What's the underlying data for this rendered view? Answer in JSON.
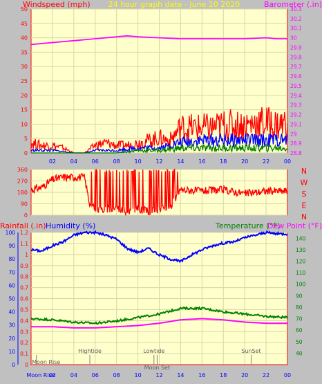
{
  "header": {
    "left_label": "Windspeed (mph)",
    "center_label": "24 hour graph date - June 10 2020",
    "right_label": "Barometer (.in)"
  },
  "bottom_header": {
    "rainfall_label": "Rainfall (.in)",
    "humidity_label": "Humidity (%)",
    "temperature_label": "Temperature (°F)",
    "dewpoint_label": "Dew Point (°F)"
  },
  "colors": {
    "background": "#c0c0c0",
    "plot_bg": "#ffffcc",
    "grid": "#d7d7a6",
    "wind_red": "#ff0000",
    "wind_blue": "#0000ff",
    "wind_green": "#008000",
    "barometer": "#ff00ff",
    "humidity": "#0000ff",
    "temperature": "#008000",
    "dewpoint": "#ff00ff",
    "header_yellow": "#ffff00",
    "header_magenta": "#ff00ff",
    "header_red": "#ff0000",
    "header_blue": "#0000ff",
    "header_green": "#008000"
  },
  "x_ticks": [
    "02",
    "04",
    "06",
    "08",
    "10",
    "12",
    "14",
    "16",
    "18",
    "20",
    "22",
    "00"
  ],
  "events": [
    {
      "label": "Moon Rise",
      "hour": 0.5
    },
    {
      "label": "Hightide",
      "hour": 5.5
    },
    {
      "label": "Lowtide",
      "hour": 11.5
    },
    {
      "label": "Moon Set",
      "hour": 11.8
    },
    {
      "label": "SunSet",
      "hour": 20.6
    }
  ],
  "chart_data": [
    {
      "name": "wind_barometer",
      "type": "line",
      "x_range": [
        0,
        24
      ],
      "left_axis": {
        "label": "Windspeed (mph)",
        "ylim": [
          0,
          50
        ],
        "ticks": [
          0,
          5,
          10,
          15,
          20,
          25,
          30,
          35,
          40,
          45,
          50
        ]
      },
      "right_axis": {
        "label": "Barometer (.in)",
        "ylim": [
          28.8,
          30.3
        ],
        "ticks": [
          "28.8",
          "28.9",
          "29",
          "29.1",
          "29.2",
          "29.3",
          "29.4",
          "29.5",
          "29.6",
          "29.7",
          "29.8",
          "29.9",
          "30",
          "30.1",
          "30.2",
          "30.3"
        ]
      },
      "series": [
        {
          "name": "Barometer",
          "axis": "right",
          "x": [
            0,
            2,
            4,
            6,
            8,
            9,
            10,
            12,
            14,
            16,
            18,
            20,
            22,
            23,
            24
          ],
          "y": [
            29.93,
            29.95,
            29.97,
            29.99,
            30.01,
            30.02,
            30.01,
            30.0,
            29.99,
            29.99,
            29.99,
            29.99,
            30.0,
            29.99,
            29.99
          ]
        },
        {
          "name": "Wind gust",
          "axis": "left",
          "x": [
            0,
            1,
            2,
            3,
            4,
            5,
            6,
            7,
            8,
            9,
            10,
            11,
            12,
            13,
            14,
            15,
            16,
            17,
            18,
            19,
            20,
            21,
            22,
            23,
            24
          ],
          "y": [
            4,
            3,
            3,
            2,
            0,
            0,
            3,
            4,
            3,
            3,
            4,
            5,
            6,
            5,
            10,
            10,
            10,
            10,
            11,
            11,
            11,
            12,
            12,
            11,
            12
          ]
        },
        {
          "name": "Wind average",
          "axis": "left",
          "x": [
            0,
            2,
            4,
            5,
            6,
            8,
            10,
            12,
            14,
            16,
            18,
            20,
            22,
            24
          ],
          "y": [
            1,
            1,
            0,
            0,
            1,
            1,
            2,
            2,
            4,
            5,
            5,
            5,
            5,
            5
          ]
        },
        {
          "name": "Wind low",
          "axis": "left",
          "x": [
            0,
            4,
            5,
            6,
            8,
            10,
            12,
            14,
            16,
            18,
            20,
            22,
            24
          ],
          "y": [
            0,
            0,
            0,
            0,
            0,
            1,
            1,
            2,
            2,
            2,
            2,
            2,
            2
          ]
        }
      ]
    },
    {
      "name": "wind_direction",
      "type": "line",
      "x_range": [
        0,
        24
      ],
      "axis": {
        "ylim": [
          0,
          360
        ],
        "ticks": [
          0,
          90,
          180,
          270,
          360
        ],
        "compass": [
          "N",
          "W",
          "S",
          "E",
          "N"
        ]
      },
      "series": [
        {
          "name": "Wind direction",
          "x": [
            0,
            1,
            2,
            3,
            4,
            5,
            5.5,
            6,
            7,
            8,
            9,
            10,
            11,
            12,
            13,
            14,
            16,
            18,
            20,
            22,
            24
          ],
          "y": [
            200,
            220,
            280,
            300,
            300,
            300,
            80,
            50,
            40,
            60,
            30,
            50,
            30,
            40,
            60,
            200,
            190,
            200,
            170,
            190,
            190
          ]
        }
      ]
    },
    {
      "name": "rain_humidity_temperature",
      "type": "line",
      "x_range": [
        0,
        24
      ],
      "rainfall_axis": {
        "label": "Rainfall (.in)",
        "ylim": [
          0,
          1.2
        ],
        "ticks": [
          "0",
          "0.1",
          "0.2",
          "0.3",
          "0.4",
          "0.5",
          "0.6",
          "0.7",
          "0.8",
          "0.9",
          "1",
          "1.1",
          "1.2"
        ]
      },
      "humidity_axis": {
        "label": "Humidity (%)",
        "ylim": [
          0,
          100
        ],
        "ticks": [
          0,
          10,
          20,
          30,
          40,
          50,
          60,
          70,
          80,
          90,
          100
        ]
      },
      "temperature_axis": {
        "label": "Temperature (°F)",
        "ylim": [
          30,
          145
        ],
        "ticks": [
          40,
          50,
          60,
          70,
          80,
          90,
          100,
          110,
          120,
          130,
          140
        ]
      },
      "series": [
        {
          "name": "Humidity",
          "axis": "humidity",
          "x": [
            0,
            1,
            2,
            3,
            4,
            5,
            6,
            7,
            8,
            9,
            10,
            11,
            12,
            13,
            14,
            15,
            16,
            17,
            18,
            19,
            20,
            21,
            22,
            23,
            24
          ],
          "y": [
            87,
            86,
            90,
            93,
            98,
            100,
            100,
            98,
            95,
            88,
            85,
            88,
            83,
            80,
            78,
            83,
            87,
            90,
            92,
            93,
            96,
            98,
            100,
            99,
            99
          ]
        },
        {
          "name": "Temperature",
          "axis": "temperature",
          "x": [
            0,
            2,
            4,
            6,
            8,
            10,
            12,
            14,
            16,
            18,
            20,
            22,
            24
          ],
          "y": [
            70,
            69,
            67,
            66,
            68,
            71,
            74,
            79,
            79,
            76,
            74,
            72,
            71
          ]
        },
        {
          "name": "Dew Point",
          "axis": "temperature",
          "x": [
            0,
            2,
            4,
            6,
            8,
            10,
            12,
            14,
            16,
            18,
            20,
            22,
            24
          ],
          "y": [
            63,
            63,
            62,
            62,
            63,
            64,
            66,
            69,
            70,
            69,
            67,
            66,
            66
          ]
        },
        {
          "name": "Rainfall",
          "axis": "rainfall",
          "x": [
            0,
            24
          ],
          "y": [
            0,
            0
          ]
        }
      ]
    }
  ]
}
